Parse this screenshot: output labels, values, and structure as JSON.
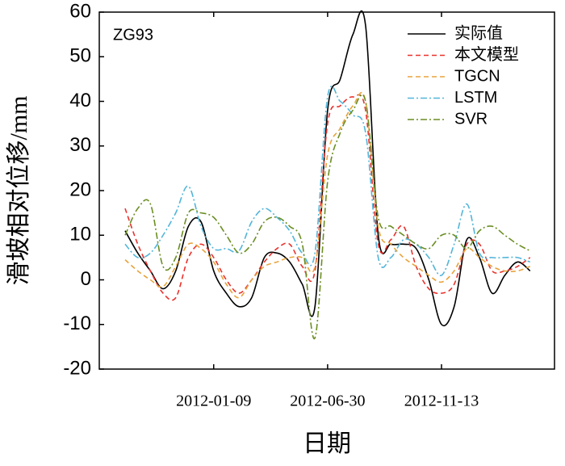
{
  "chart_data": {
    "type": "line",
    "annotation": "ZG93",
    "annotation_color": "#e8322d",
    "xlabel": "日期",
    "ylabel": "滑坡相对位移/mm",
    "categories": [
      null,
      null,
      null,
      null,
      null,
      null,
      null,
      "2012-01-09",
      null,
      null,
      null,
      null,
      null,
      null,
      null,
      null,
      "2012-06-30",
      null,
      null,
      null,
      null,
      null,
      null,
      null,
      null,
      "2012-11-13",
      null,
      null,
      null,
      null,
      null,
      null,
      null
    ],
    "ylim": [
      -20,
      60
    ],
    "yticks": [
      -20,
      -10,
      0,
      10,
      20,
      30,
      40,
      50,
      60
    ],
    "grid": false,
    "legend": "upper right",
    "series": [
      {
        "name": "实际值",
        "color": "#000000",
        "dash": "solid",
        "values": [
          11,
          6,
          2,
          -2,
          2,
          12,
          13,
          2,
          -3,
          -6,
          -4,
          5,
          6,
          4,
          -1,
          -6,
          38,
          45,
          55,
          57,
          10,
          8,
          8,
          7,
          0,
          -10,
          -6,
          9,
          5,
          -3,
          1,
          4,
          2
        ]
      },
      {
        "name": "本文模型",
        "color": "#e8322d",
        "dash": "dashed",
        "values": [
          16,
          8,
          2,
          -3,
          -4,
          5,
          8,
          5,
          0,
          -3,
          0,
          4,
          7,
          8,
          3,
          2,
          35,
          39,
          41,
          38,
          8,
          9,
          12,
          3,
          -2,
          -3,
          -1,
          8,
          8,
          2,
          2,
          3,
          5
        ]
      },
      {
        "name": "TGCN",
        "color": "#e8a33c",
        "dash": "dashed",
        "values": [
          4.5,
          2,
          0,
          -1.5,
          3,
          8,
          7,
          4,
          -1,
          -4,
          0,
          3,
          4,
          5,
          5,
          3,
          28,
          34,
          39,
          40,
          12,
          8,
          5,
          3,
          1,
          -0.5,
          2,
          7,
          5,
          3,
          2,
          2,
          3
        ]
      },
      {
        "name": "LSTM",
        "color": "#52b5d9",
        "dash": "dashdot",
        "values": [
          8,
          5,
          6,
          10,
          15,
          21,
          12,
          7,
          7,
          6.5,
          13,
          16,
          14,
          11,
          6,
          6,
          41,
          40,
          37,
          33,
          5,
          5,
          9,
          8,
          5,
          1,
          8,
          17,
          6,
          5,
          5,
          5,
          4
        ]
      },
      {
        "name": "SVR",
        "color": "#6b8e23",
        "dash": "dashdot",
        "values": [
          10,
          16,
          17,
          3,
          5,
          15,
          15,
          14,
          10,
          6,
          8,
          13,
          14,
          12,
          8,
          -13,
          22,
          33,
          38,
          40,
          14,
          12,
          10,
          8,
          7,
          10,
          10,
          7,
          11,
          12,
          10,
          8,
          6.5
        ]
      }
    ]
  }
}
